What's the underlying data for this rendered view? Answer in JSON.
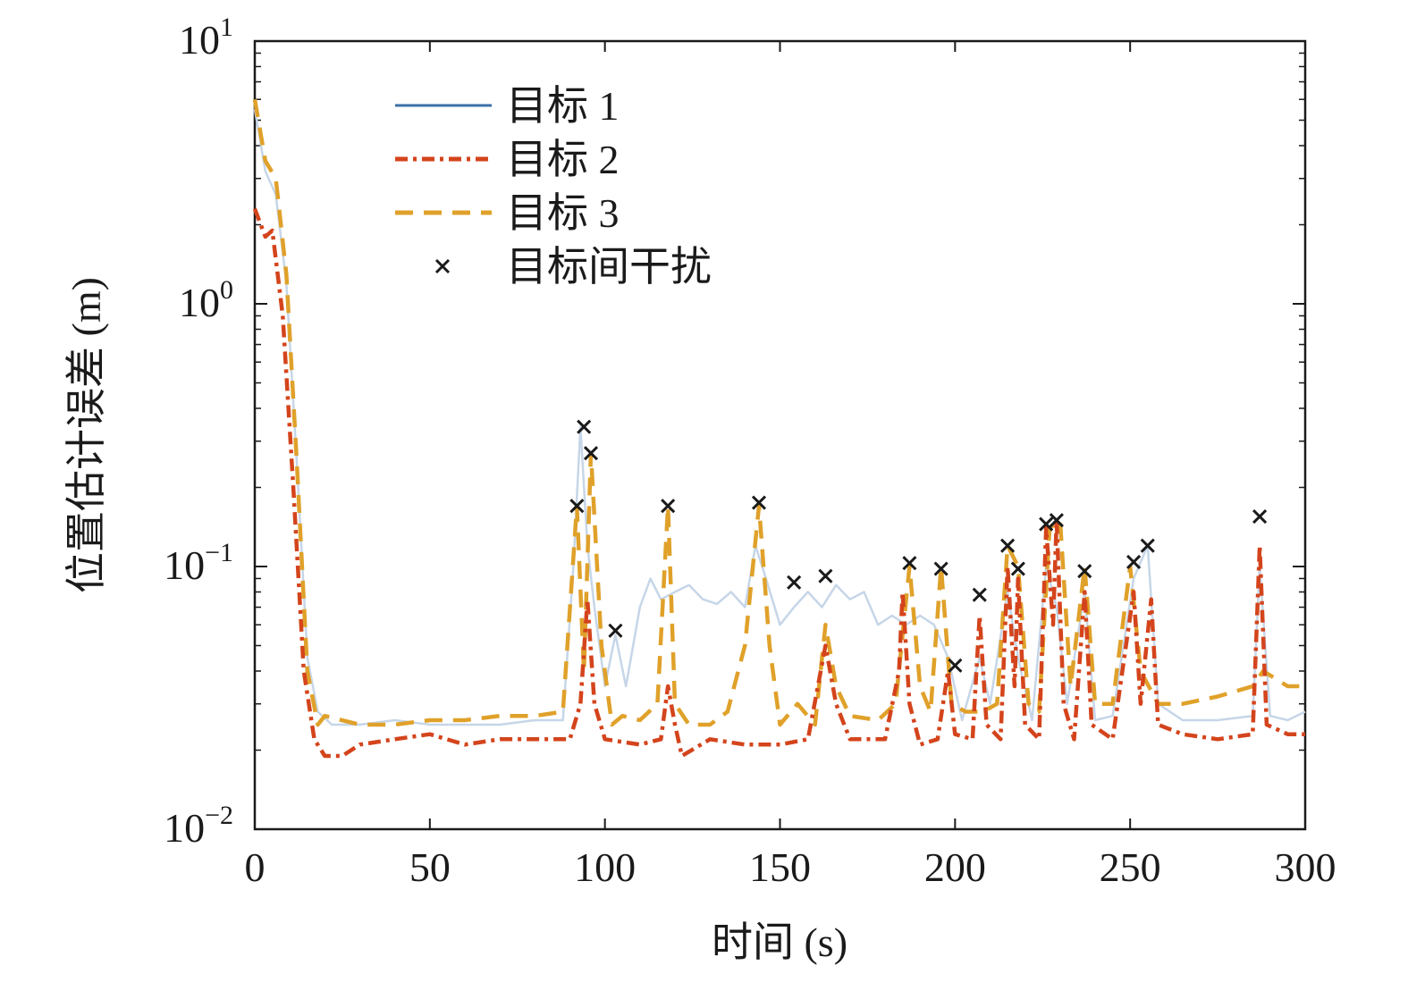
{
  "chart_data": {
    "type": "line",
    "xlabel": "时间  (s)",
    "ylabel": "位置估计误差 (m)",
    "xlim": [
      0,
      300
    ],
    "ylim": [
      0.01,
      10
    ],
    "yscale": "log",
    "grid": false,
    "legend_position": "top-left",
    "x_ticks": [
      0,
      50,
      100,
      150,
      200,
      250,
      300
    ],
    "x_tick_labels": [
      "0",
      "50",
      "100",
      "150",
      "200",
      "250",
      "300"
    ],
    "y_ticks": [
      10,
      1,
      0.1,
      0.01
    ],
    "y_tick_labels": [
      {
        "base": "10",
        "exp": "1"
      },
      {
        "base": "10",
        "exp": "0"
      },
      {
        "base": "10",
        "exp": "−1"
      },
      {
        "base": "10",
        "exp": "−2"
      }
    ],
    "colors": {
      "target1": "#c6d6e8",
      "target1_legend": "#3a6fa8",
      "target2": "#d4441c",
      "target3": "#e0a12a",
      "interference": "#1a1a1a",
      "axis": "#1a1a1a"
    },
    "series": [
      {
        "name": "目标 1",
        "style": "solid",
        "points": [
          [
            0,
            5.5
          ],
          [
            3,
            3.2
          ],
          [
            6,
            2.6
          ],
          [
            9,
            1.2
          ],
          [
            12,
            0.25
          ],
          [
            15,
            0.045
          ],
          [
            18,
            0.028
          ],
          [
            22,
            0.025
          ],
          [
            30,
            0.025
          ],
          [
            40,
            0.026
          ],
          [
            50,
            0.025
          ],
          [
            60,
            0.025
          ],
          [
            70,
            0.025
          ],
          [
            80,
            0.026
          ],
          [
            88,
            0.026
          ],
          [
            91,
            0.1
          ],
          [
            93,
            0.34
          ],
          [
            95,
            0.12
          ],
          [
            97,
            0.07
          ],
          [
            100,
            0.035
          ],
          [
            103,
            0.055
          ],
          [
            106,
            0.035
          ],
          [
            110,
            0.07
          ],
          [
            113,
            0.09
          ],
          [
            116,
            0.075
          ],
          [
            120,
            0.08
          ],
          [
            124,
            0.085
          ],
          [
            128,
            0.075
          ],
          [
            132,
            0.072
          ],
          [
            136,
            0.08
          ],
          [
            140,
            0.07
          ],
          [
            143,
            0.12
          ],
          [
            146,
            0.09
          ],
          [
            150,
            0.06
          ],
          [
            154,
            0.07
          ],
          [
            158,
            0.08
          ],
          [
            162,
            0.07
          ],
          [
            166,
            0.085
          ],
          [
            170,
            0.075
          ],
          [
            174,
            0.08
          ],
          [
            178,
            0.06
          ],
          [
            182,
            0.065
          ],
          [
            186,
            0.06
          ],
          [
            190,
            0.065
          ],
          [
            194,
            0.06
          ],
          [
            198,
            0.045
          ],
          [
            202,
            0.026
          ],
          [
            207,
            0.045
          ],
          [
            210,
            0.03
          ],
          [
            215,
            0.08
          ],
          [
            218,
            0.045
          ],
          [
            222,
            0.026
          ],
          [
            226,
            0.1
          ],
          [
            229,
            0.07
          ],
          [
            232,
            0.03
          ],
          [
            237,
            0.08
          ],
          [
            240,
            0.026
          ],
          [
            245,
            0.027
          ],
          [
            251,
            0.09
          ],
          [
            255,
            0.12
          ],
          [
            258,
            0.03
          ],
          [
            265,
            0.026
          ],
          [
            275,
            0.026
          ],
          [
            285,
            0.027
          ],
          [
            287,
            0.1
          ],
          [
            290,
            0.027
          ],
          [
            295,
            0.026
          ],
          [
            300,
            0.028
          ]
        ]
      },
      {
        "name": "目标 2",
        "style": "dashdot",
        "points": [
          [
            0,
            2.3
          ],
          [
            3,
            1.8
          ],
          [
            5,
            1.9
          ],
          [
            8,
            0.9
          ],
          [
            11,
            0.2
          ],
          [
            14,
            0.04
          ],
          [
            17,
            0.022
          ],
          [
            20,
            0.019
          ],
          [
            25,
            0.019
          ],
          [
            30,
            0.021
          ],
          [
            40,
            0.022
          ],
          [
            50,
            0.023
          ],
          [
            60,
            0.021
          ],
          [
            70,
            0.022
          ],
          [
            80,
            0.022
          ],
          [
            90,
            0.022
          ],
          [
            93,
            0.03
          ],
          [
            95,
            0.075
          ],
          [
            97,
            0.03
          ],
          [
            100,
            0.022
          ],
          [
            110,
            0.021
          ],
          [
            116,
            0.022
          ],
          [
            118,
            0.035
          ],
          [
            120,
            0.025
          ],
          [
            122,
            0.019
          ],
          [
            130,
            0.022
          ],
          [
            140,
            0.021
          ],
          [
            150,
            0.021
          ],
          [
            158,
            0.022
          ],
          [
            163,
            0.05
          ],
          [
            166,
            0.03
          ],
          [
            170,
            0.022
          ],
          [
            180,
            0.022
          ],
          [
            184,
            0.04
          ],
          [
            185,
            0.08
          ],
          [
            187,
            0.03
          ],
          [
            190,
            0.021
          ],
          [
            195,
            0.022
          ],
          [
            198,
            0.04
          ],
          [
            200,
            0.023
          ],
          [
            205,
            0.022
          ],
          [
            207,
            0.065
          ],
          [
            209,
            0.025
          ],
          [
            213,
            0.022
          ],
          [
            215,
            0.1
          ],
          [
            217,
            0.035
          ],
          [
            218,
            0.09
          ],
          [
            220,
            0.025
          ],
          [
            224,
            0.022
          ],
          [
            226,
            0.14
          ],
          [
            228,
            0.06
          ],
          [
            229,
            0.15
          ],
          [
            231,
            0.03
          ],
          [
            234,
            0.022
          ],
          [
            237,
            0.08
          ],
          [
            239,
            0.025
          ],
          [
            245,
            0.022
          ],
          [
            251,
            0.08
          ],
          [
            253,
            0.03
          ],
          [
            256,
            0.075
          ],
          [
            258,
            0.025
          ],
          [
            265,
            0.023
          ],
          [
            275,
            0.022
          ],
          [
            285,
            0.023
          ],
          [
            287,
            0.12
          ],
          [
            289,
            0.025
          ],
          [
            295,
            0.023
          ],
          [
            300,
            0.023
          ]
        ]
      },
      {
        "name": "目标 3",
        "style": "dashed",
        "points": [
          [
            0,
            6
          ],
          [
            3,
            3.5
          ],
          [
            6,
            3
          ],
          [
            9,
            1.3
          ],
          [
            12,
            0.25
          ],
          [
            15,
            0.04
          ],
          [
            18,
            0.025
          ],
          [
            20,
            0.027
          ],
          [
            30,
            0.025
          ],
          [
            40,
            0.025
          ],
          [
            50,
            0.026
          ],
          [
            60,
            0.026
          ],
          [
            70,
            0.027
          ],
          [
            80,
            0.027
          ],
          [
            88,
            0.028
          ],
          [
            92,
            0.17
          ],
          [
            94,
            0.04
          ],
          [
            96,
            0.27
          ],
          [
            99,
            0.05
          ],
          [
            102,
            0.025
          ],
          [
            105,
            0.027
          ],
          [
            110,
            0.026
          ],
          [
            115,
            0.03
          ],
          [
            118,
            0.17
          ],
          [
            120,
            0.03
          ],
          [
            124,
            0.025
          ],
          [
            130,
            0.025
          ],
          [
            135,
            0.028
          ],
          [
            140,
            0.05
          ],
          [
            144,
            0.17
          ],
          [
            147,
            0.05
          ],
          [
            150,
            0.025
          ],
          [
            155,
            0.03
          ],
          [
            160,
            0.025
          ],
          [
            163,
            0.06
          ],
          [
            166,
            0.035
          ],
          [
            170,
            0.027
          ],
          [
            178,
            0.026
          ],
          [
            183,
            0.03
          ],
          [
            187,
            0.1
          ],
          [
            190,
            0.035
          ],
          [
            193,
            0.028
          ],
          [
            196,
            0.1
          ],
          [
            199,
            0.03
          ],
          [
            203,
            0.028
          ],
          [
            208,
            0.028
          ],
          [
            212,
            0.03
          ],
          [
            215,
            0.12
          ],
          [
            218,
            0.1
          ],
          [
            221,
            0.03
          ],
          [
            224,
            0.028
          ],
          [
            227,
            0.14
          ],
          [
            230,
            0.15
          ],
          [
            233,
            0.035
          ],
          [
            237,
            0.1
          ],
          [
            240,
            0.03
          ],
          [
            245,
            0.03
          ],
          [
            250,
            0.1
          ],
          [
            253,
            0.04
          ],
          [
            258,
            0.03
          ],
          [
            265,
            0.03
          ],
          [
            275,
            0.032
          ],
          [
            285,
            0.035
          ],
          [
            288,
            0.04
          ],
          [
            295,
            0.035
          ],
          [
            300,
            0.035
          ]
        ]
      }
    ],
    "interference_label": "目标间干扰",
    "interference_points": [
      [
        92,
        0.17
      ],
      [
        94,
        0.34
      ],
      [
        96,
        0.27
      ],
      [
        103,
        0.057
      ],
      [
        118,
        0.17
      ],
      [
        144,
        0.175
      ],
      [
        154,
        0.087
      ],
      [
        163,
        0.092
      ],
      [
        187,
        0.103
      ],
      [
        196,
        0.098
      ],
      [
        200,
        0.042
      ],
      [
        207,
        0.078
      ],
      [
        215,
        0.12
      ],
      [
        218,
        0.098
      ],
      [
        226,
        0.145
      ],
      [
        229,
        0.15
      ],
      [
        237,
        0.096
      ],
      [
        251,
        0.104
      ],
      [
        255,
        0.12
      ],
      [
        287,
        0.155
      ]
    ]
  }
}
